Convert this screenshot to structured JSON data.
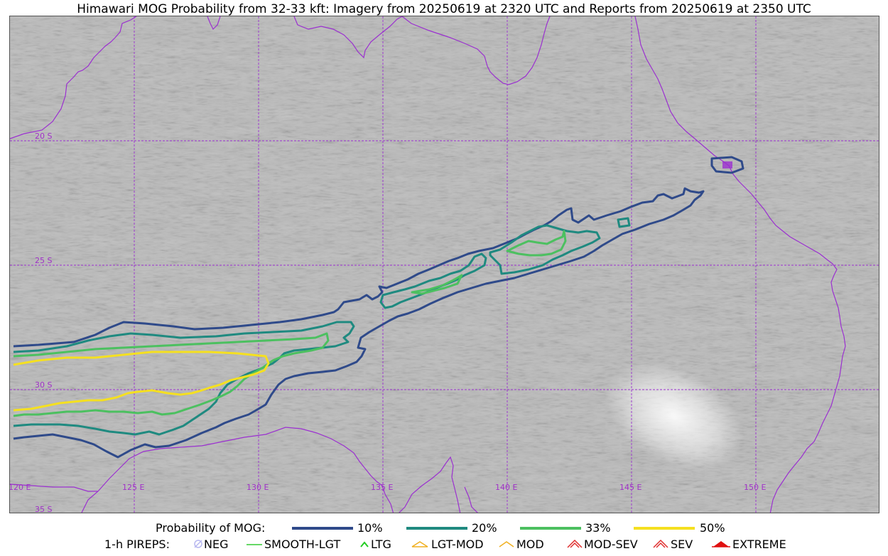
{
  "title": "Himawari MOG Probability from 32-33 kft: Imagery from 20250619 at 2320 UTC and Reports from 20250619 at 2350 UTC",
  "map": {
    "lon_labels": [
      "120 E",
      "125 E",
      "130 E",
      "135 E",
      "140 E",
      "145 E",
      "150 E"
    ],
    "lat_labels": [
      "20 S",
      "25 S",
      "30 S",
      "35 S"
    ],
    "coastline_color": "#9b30d0",
    "grid_color": "#9b30d0"
  },
  "legend_probability": {
    "label": "Probability of MOG:",
    "items": [
      {
        "label": "10%",
        "color": "#2f4a8a"
      },
      {
        "label": "20%",
        "color": "#1f8a80"
      },
      {
        "label": "33%",
        "color": "#4cc060"
      },
      {
        "label": "50%",
        "color": "#f5e020"
      }
    ]
  },
  "legend_pireps": {
    "label": "1-h PIREPS:",
    "items": [
      {
        "label": "NEG",
        "icon": "neg-icon",
        "color": "#b8b8f0"
      },
      {
        "label": "SMOOTH-LGT",
        "icon": "smooth-lgt-icon",
        "color": "#33cc33"
      },
      {
        "label": "LTG",
        "icon": "ltg-icon",
        "color": "#22cc22"
      },
      {
        "label": "LGT-MOD",
        "icon": "lgt-mod-icon",
        "color": "#f0b020"
      },
      {
        "label": "MOD",
        "icon": "mod-icon",
        "color": "#f0b020"
      },
      {
        "label": "MOD-SEV",
        "icon": "mod-sev-icon",
        "color": "#e03030"
      },
      {
        "label": "SEV",
        "icon": "sev-icon",
        "color": "#e03030"
      },
      {
        "label": "EXTREME",
        "icon": "extreme-icon",
        "color": "#e01010"
      }
    ]
  }
}
